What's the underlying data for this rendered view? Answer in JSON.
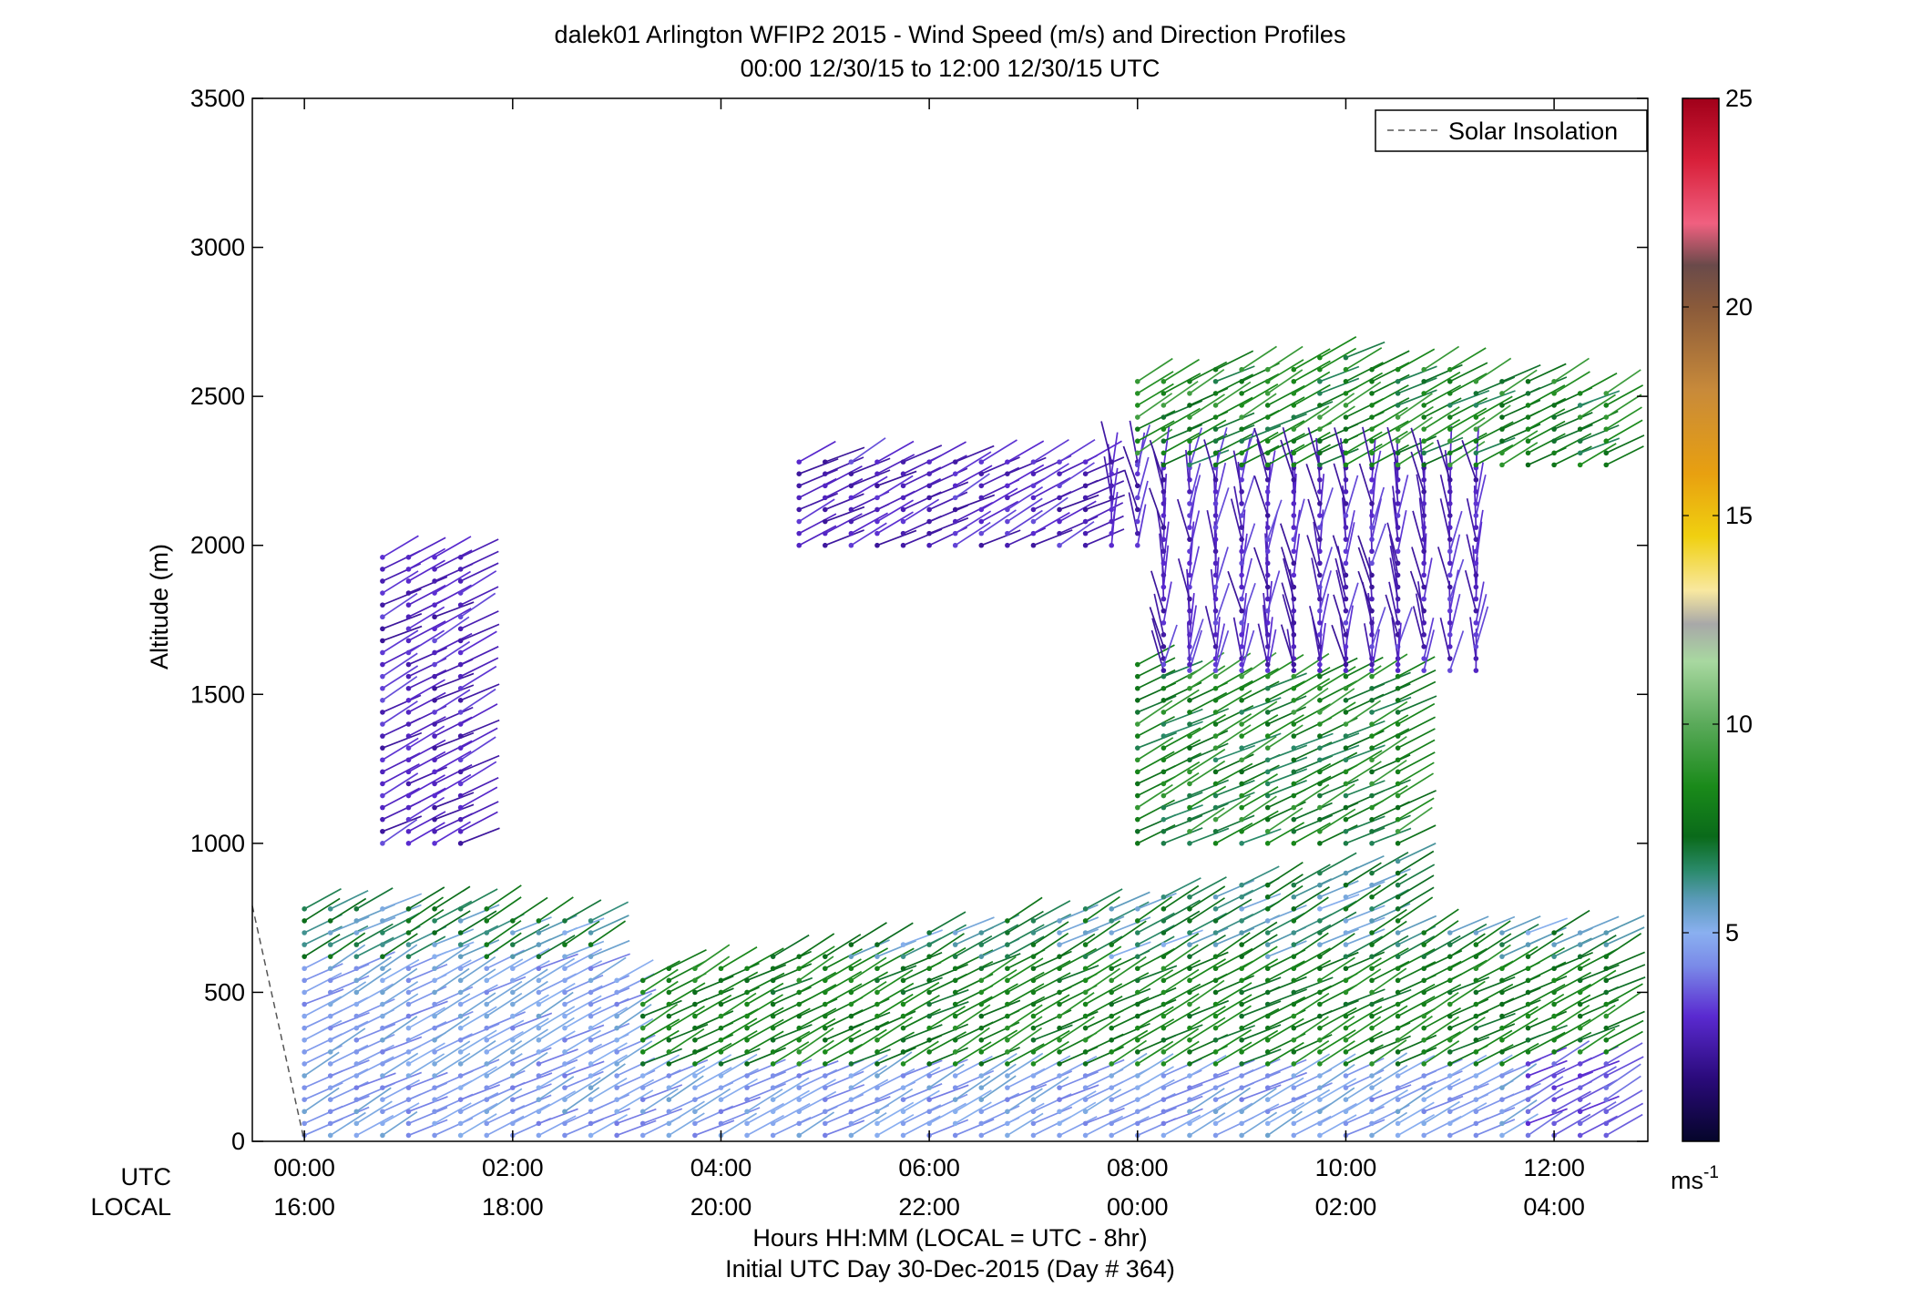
{
  "chart_data": {
    "type": "wind-barb-profile",
    "title": "dalek01 Arlington WFIP2 2015 - Wind Speed (m/s) and Direction Profiles",
    "subtitle": "00:00 12/30/15 to 12:00 12/30/15  UTC",
    "ylabel": "Altitude (m)",
    "xlabel": "Hours HH:MM  (LOCAL = UTC - 8hr)",
    "xlabel2": "Initial UTC Day 30-Dec-2015 (Day # 364)",
    "row_label_utc": "UTC",
    "row_label_local": "LOCAL",
    "xlim": [
      -0.5,
      12.9
    ],
    "ylim": [
      0,
      3500
    ],
    "yticks": [
      0,
      500,
      1000,
      1500,
      2000,
      2500,
      3000,
      3500
    ],
    "ytick_labels": [
      "0",
      "500",
      "1000",
      "1500",
      "2000",
      "2500",
      "3000",
      "3500"
    ],
    "xticks": [
      0,
      2,
      4,
      6,
      8,
      10,
      12
    ],
    "utc_tick_labels": [
      "00:00",
      "02:00",
      "04:00",
      "06:00",
      "08:00",
      "10:00",
      "12:00"
    ],
    "local_tick_labels": [
      "16:00",
      "18:00",
      "20:00",
      "22:00",
      "00:00",
      "02:00",
      "04:00"
    ],
    "legend": {
      "entries": [
        "Solar Insolation"
      ],
      "placement": "top-right"
    },
    "solar_insolation": {
      "x": [
        -0.5,
        0.0
      ],
      "y": [
        790,
        0
      ]
    },
    "colorbar": {
      "label": "ms",
      "label_superscript": "-1",
      "range": [
        0,
        25
      ],
      "ticks": [
        5,
        10,
        15,
        20,
        25
      ],
      "tick_labels": [
        "5",
        "10",
        "15",
        "20",
        "25"
      ],
      "stops": [
        [
          0,
          "#05052a"
        ],
        [
          1.5,
          "#2a0a7a"
        ],
        [
          3,
          "#5a2ad0"
        ],
        [
          4.2,
          "#7a8ae8"
        ],
        [
          5,
          "#8ab0f0"
        ],
        [
          5.8,
          "#5a9ab8"
        ],
        [
          6.5,
          "#2a8a6a"
        ],
        [
          7.3,
          "#0a6a1a"
        ],
        [
          8.5,
          "#1a8a1a"
        ],
        [
          10,
          "#5aaa5a"
        ],
        [
          11.5,
          "#a8d8a0"
        ],
        [
          12.4,
          "#a8a8a8"
        ],
        [
          13.2,
          "#f8e8a0"
        ],
        [
          14.5,
          "#f0d010"
        ],
        [
          16,
          "#e8a010"
        ],
        [
          18,
          "#c88a3a"
        ],
        [
          20,
          "#8a5a3a"
        ],
        [
          21,
          "#6a4a4a"
        ],
        [
          22,
          "#f06080"
        ],
        [
          23.5,
          "#d8203a"
        ],
        [
          25,
          "#a0001a"
        ]
      ]
    },
    "profiles_description_note": "",
    "barb_series": [
      {
        "x0": 0.0,
        "x1": 12.9,
        "dx": 0.25,
        "zmin": 0,
        "zmax": 1000
      }
    ]
  }
}
